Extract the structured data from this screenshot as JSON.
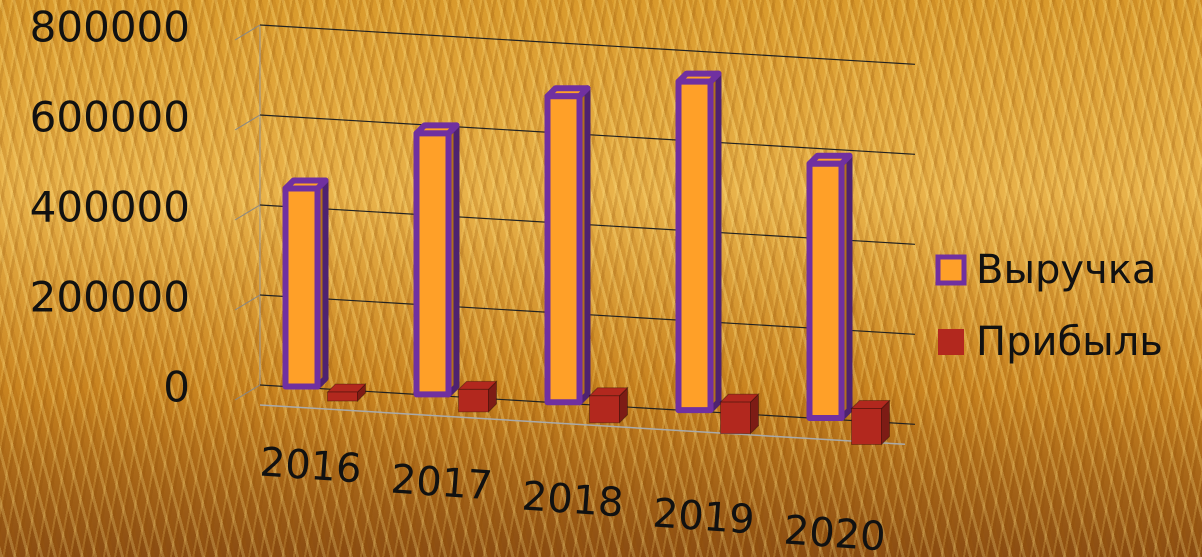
{
  "chart_data": {
    "type": "bar3d",
    "categories": [
      "2016",
      "2017",
      "2018",
      "2019",
      "2020"
    ],
    "series": [
      {
        "name": "Выручка",
        "color": "#ffa028",
        "border": "#7030a0",
        "values": [
          440000,
          580000,
          680000,
          730000,
          565000
        ]
      },
      {
        "name": "Прибыль",
        "color": "#b2281e",
        "values": [
          20000,
          50000,
          60000,
          70000,
          80000
        ]
      }
    ],
    "ylim": [
      0,
      800000
    ],
    "yticks": [
      0,
      200000,
      400000,
      600000,
      800000
    ],
    "grid": true,
    "legend": "right"
  }
}
